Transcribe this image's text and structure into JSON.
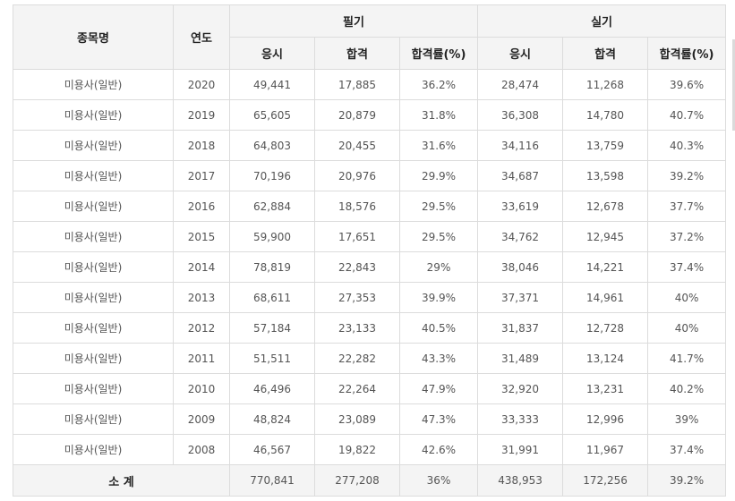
{
  "headers": {
    "item": "종목명",
    "year": "연도",
    "written": "필기",
    "practical": "실기",
    "applicants": "응시",
    "passed": "합격",
    "rate": "합격률(%)"
  },
  "rows": [
    {
      "item": "미용사(일반)",
      "year": "2020",
      "w_app": "49,441",
      "w_pass": "17,885",
      "w_rate": "36.2%",
      "p_app": "28,474",
      "p_pass": "11,268",
      "p_rate": "39.6%"
    },
    {
      "item": "미용사(일반)",
      "year": "2019",
      "w_app": "65,605",
      "w_pass": "20,879",
      "w_rate": "31.8%",
      "p_app": "36,308",
      "p_pass": "14,780",
      "p_rate": "40.7%"
    },
    {
      "item": "미용사(일반)",
      "year": "2018",
      "w_app": "64,803",
      "w_pass": "20,455",
      "w_rate": "31.6%",
      "p_app": "34,116",
      "p_pass": "13,759",
      "p_rate": "40.3%"
    },
    {
      "item": "미용사(일반)",
      "year": "2017",
      "w_app": "70,196",
      "w_pass": "20,976",
      "w_rate": "29.9%",
      "p_app": "34,687",
      "p_pass": "13,598",
      "p_rate": "39.2%"
    },
    {
      "item": "미용사(일반)",
      "year": "2016",
      "w_app": "62,884",
      "w_pass": "18,576",
      "w_rate": "29.5%",
      "p_app": "33,619",
      "p_pass": "12,678",
      "p_rate": "37.7%"
    },
    {
      "item": "미용사(일반)",
      "year": "2015",
      "w_app": "59,900",
      "w_pass": "17,651",
      "w_rate": "29.5%",
      "p_app": "34,762",
      "p_pass": "12,945",
      "p_rate": "37.2%"
    },
    {
      "item": "미용사(일반)",
      "year": "2014",
      "w_app": "78,819",
      "w_pass": "22,843",
      "w_rate": "29%",
      "p_app": "38,046",
      "p_pass": "14,221",
      "p_rate": "37.4%"
    },
    {
      "item": "미용사(일반)",
      "year": "2013",
      "w_app": "68,611",
      "w_pass": "27,353",
      "w_rate": "39.9%",
      "p_app": "37,371",
      "p_pass": "14,961",
      "p_rate": "40%"
    },
    {
      "item": "미용사(일반)",
      "year": "2012",
      "w_app": "57,184",
      "w_pass": "23,133",
      "w_rate": "40.5%",
      "p_app": "31,837",
      "p_pass": "12,728",
      "p_rate": "40%"
    },
    {
      "item": "미용사(일반)",
      "year": "2011",
      "w_app": "51,511",
      "w_pass": "22,282",
      "w_rate": "43.3%",
      "p_app": "31,489",
      "p_pass": "13,124",
      "p_rate": "41.7%"
    },
    {
      "item": "미용사(일반)",
      "year": "2010",
      "w_app": "46,496",
      "w_pass": "22,264",
      "w_rate": "47.9%",
      "p_app": "32,920",
      "p_pass": "13,231",
      "p_rate": "40.2%"
    },
    {
      "item": "미용사(일반)",
      "year": "2009",
      "w_app": "48,824",
      "w_pass": "23,089",
      "w_rate": "47.3%",
      "p_app": "33,333",
      "p_pass": "12,996",
      "p_rate": "39%"
    },
    {
      "item": "미용사(일반)",
      "year": "2008",
      "w_app": "46,567",
      "w_pass": "19,822",
      "w_rate": "42.6%",
      "p_app": "31,991",
      "p_pass": "11,967",
      "p_rate": "37.4%"
    }
  ],
  "total": {
    "label": "소 계",
    "w_app": "770,841",
    "w_pass": "277,208",
    "w_rate": "36%",
    "p_app": "438,953",
    "p_pass": "172,256",
    "p_rate": "39.2%"
  }
}
